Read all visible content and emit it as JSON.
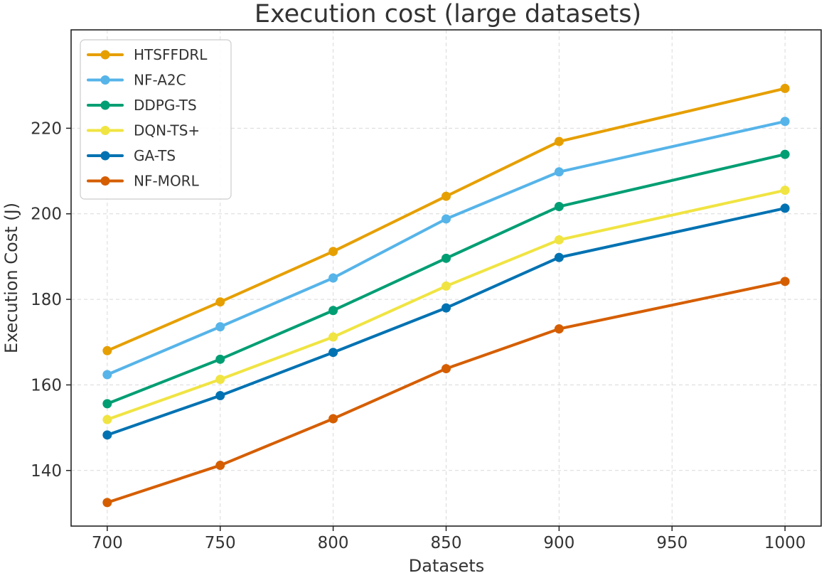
{
  "chart_data": {
    "type": "line",
    "title": "Execution cost (large datasets)",
    "xlabel": "Datasets",
    "ylabel": "Execution Cost (J)",
    "x": [
      700,
      750,
      800,
      850,
      900,
      1000
    ],
    "xticks": [
      700,
      750,
      800,
      850,
      900,
      950,
      1000
    ],
    "yticks": [
      140,
      160,
      180,
      200,
      220
    ],
    "xlim": [
      684,
      1016
    ],
    "ylim": [
      127,
      243
    ],
    "grid": true,
    "legend_position": "top-left",
    "series": [
      {
        "name": "HTSFFDRL",
        "color": "#E69F00",
        "values": [
          168.0,
          179.4,
          191.2,
          204.1,
          216.9,
          229.3
        ]
      },
      {
        "name": "NF-A2C",
        "color": "#56B4E9",
        "values": [
          162.4,
          173.6,
          185.0,
          198.8,
          209.8,
          221.6
        ]
      },
      {
        "name": "DDPG-TS",
        "color": "#009E73",
        "values": [
          155.6,
          166.0,
          177.4,
          189.6,
          201.7,
          213.9
        ]
      },
      {
        "name": "DQN-TS+",
        "color": "#F0E442",
        "values": [
          151.9,
          161.3,
          171.2,
          183.1,
          193.9,
          205.5
        ]
      },
      {
        "name": "GA-TS",
        "color": "#0072B2",
        "values": [
          148.3,
          157.5,
          167.6,
          178.0,
          189.8,
          201.3
        ]
      },
      {
        "name": "NF-MORL",
        "color": "#D55E00",
        "values": [
          132.5,
          141.2,
          152.1,
          163.8,
          173.1,
          184.2
        ]
      }
    ]
  }
}
